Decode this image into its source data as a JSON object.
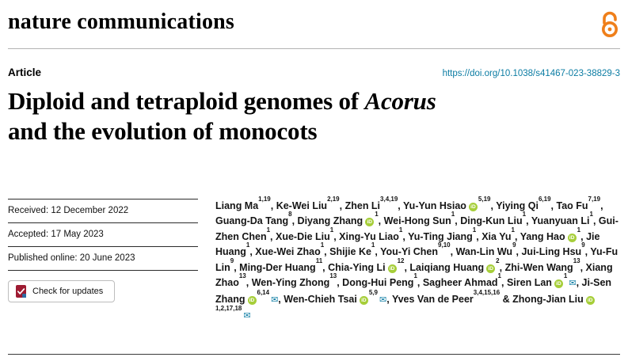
{
  "header": {
    "journal": "nature communications"
  },
  "article": {
    "label": "Article",
    "doi": "https://doi.org/10.1038/s41467-023-38829-3",
    "title": {
      "pre": "Diploid and tetraploid genomes of ",
      "italic": "Acorus",
      "line2": "and the evolution of monocots"
    }
  },
  "meta": {
    "received": "Received: 12 December 2022",
    "accepted": "Accepted: 17 May 2023",
    "published": "Published online: 20 June 2023",
    "check_for_updates": "Check for updates"
  },
  "icons": {
    "orcid": "iD",
    "mail": "✉",
    "open_access": "open-padlock",
    "crossmark": "crossmark-badge"
  },
  "colors": {
    "link_teal": "#0b7ca3",
    "orcid_green": "#a6ce39",
    "open_access_orange": "#ef7f1a",
    "crossmark_red": "#9e1b32",
    "crossmark_blue": "#2e6da4"
  },
  "authors": [
    {
      "name": "Liang Ma",
      "sup": "1,19"
    },
    {
      "name": "Ke-Wei Liu",
      "sup": "2,19"
    },
    {
      "name": "Zhen Li",
      "sup": "3,4,19"
    },
    {
      "name": "Yu-Yun Hsiao",
      "orcid": true,
      "sup": "5,19"
    },
    {
      "name": "Yiying Qi",
      "sup": "6,19"
    },
    {
      "name": "Tao Fu",
      "sup": "7,19"
    },
    {
      "name": "Guang-Da Tang",
      "sup": "8"
    },
    {
      "name": "Diyang Zhang",
      "orcid": true,
      "sup": "1"
    },
    {
      "name": "Wei-Hong Sun",
      "sup": "1"
    },
    {
      "name": "Ding-Kun Liu",
      "sup": "1"
    },
    {
      "name": "Yuanyuan Li",
      "sup": "1"
    },
    {
      "name": "Gui-Zhen Chen",
      "sup": "1"
    },
    {
      "name": "Xue-Die Liu",
      "sup": "1"
    },
    {
      "name": "Xing-Yu Liao",
      "sup": "1"
    },
    {
      "name": "Yu-Ting Jiang",
      "sup": "1"
    },
    {
      "name": "Xia Yu",
      "sup": "1"
    },
    {
      "name": "Yang Hao",
      "orcid": true,
      "sup": "1"
    },
    {
      "name": "Jie Huang",
      "sup": "1"
    },
    {
      "name": "Xue-Wei Zhao",
      "sup": "1"
    },
    {
      "name": "Shijie Ke",
      "sup": "1"
    },
    {
      "name": "You-Yi Chen",
      "sup": "9,10"
    },
    {
      "name": "Wan-Lin Wu",
      "sup": "9"
    },
    {
      "name": "Jui-Ling Hsu",
      "sup": "9"
    },
    {
      "name": "Yu-Fu Lin",
      "sup": "9"
    },
    {
      "name": "Ming-Der Huang",
      "sup": "11"
    },
    {
      "name": "Chia-Ying Li",
      "orcid": true,
      "sup": "12"
    },
    {
      "name": "Laiqiang Huang",
      "orcid": true,
      "sup": "2"
    },
    {
      "name": "Zhi-Wen Wang",
      "sup": "13"
    },
    {
      "name": "Xiang Zhao",
      "sup": "13"
    },
    {
      "name": "Wen-Ying Zhong",
      "sup": "13"
    },
    {
      "name": "Dong-Hui Peng",
      "sup": "1"
    },
    {
      "name": "Sagheer Ahmad",
      "sup": "1"
    },
    {
      "name": "Siren Lan",
      "orcid": true,
      "sup": "1",
      "mail": true
    },
    {
      "name": "Ji-Sen Zhang",
      "orcid": true,
      "sup": "6,14",
      "mail": true
    },
    {
      "name": "Wen-Chieh Tsai",
      "orcid": true,
      "sup": "5,9",
      "mail": true
    },
    {
      "name": "Yves Van de Peer",
      "sup": "3,4,15,16"
    },
    {
      "name": "Zhong-Jian Liu",
      "orcid": true,
      "sup": "1,2,17,18",
      "mail": true
    }
  ]
}
